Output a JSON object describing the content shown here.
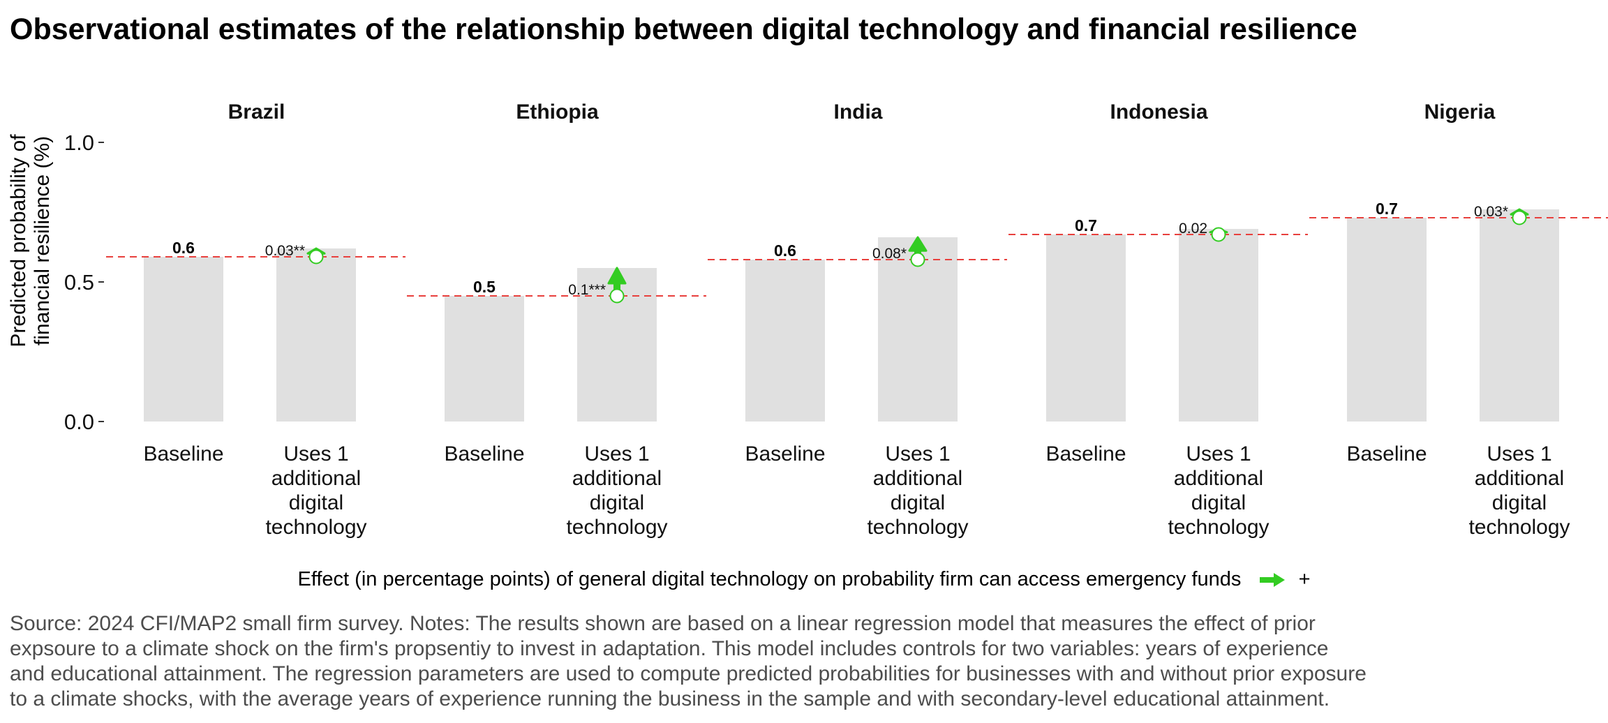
{
  "chart_data": {
    "type": "bar",
    "title": "Observational estimates of the relationship between digital technology and financial resilience",
    "ylabel": [
      "Predicted probability of",
      "financial resilience (%)"
    ],
    "ylim": [
      0,
      1
    ],
    "yticks": [
      {
        "value": 0.0,
        "label": "0.0"
      },
      {
        "value": 0.5,
        "label": "0.5"
      },
      {
        "value": 1.0,
        "label": "1.0"
      }
    ],
    "categories": [
      {
        "key": "baseline",
        "label_lines": [
          "Baseline"
        ]
      },
      {
        "key": "treated",
        "label_lines": [
          "Uses 1",
          "additional",
          "digital",
          "technology"
        ]
      }
    ],
    "panels": [
      {
        "name": "Brazil",
        "baseline": 0.59,
        "treated": 0.62,
        "baseline_label": "0.6",
        "effect_label": "0.03**"
      },
      {
        "name": "Ethiopia",
        "baseline": 0.45,
        "treated": 0.55,
        "baseline_label": "0.5",
        "effect_label": "0.1***"
      },
      {
        "name": "India",
        "baseline": 0.58,
        "treated": 0.66,
        "baseline_label": "0.6",
        "effect_label": "0.08*"
      },
      {
        "name": "Indonesia",
        "baseline": 0.67,
        "treated": 0.69,
        "baseline_label": "0.7",
        "effect_label": "0.02"
      },
      {
        "name": "Nigeria",
        "baseline": 0.73,
        "treated": 0.76,
        "baseline_label": "0.7",
        "effect_label": "0.03*"
      }
    ],
    "legend": {
      "text": "Effect (in percentage points) of general digital technology on probability firm can access emergency funds",
      "sign": "+",
      "placement": "bottom"
    },
    "grid": false,
    "colors": {
      "bar": "#e0e0e0",
      "reference_line": "#e8403d",
      "effect": "#33cc22",
      "marker_fill": "#ffffff"
    }
  },
  "source_note": [
    "Source: 2024 CFI/MAP2 small firm survey. Notes: The results shown are based on a linear regression model that measures the effect of prior",
    "expsoure to a climate shock on the firm's propsentiy to invest in adaptation. This model includes controls for two variables: years of experience",
    "and educational attainment. The regression parameters are used to compute predicted probabilities for businesses with and without prior exposure",
    "to a climate shocks, with the average years of experience running the business in the sample and with secondary-level educational attainment."
  ]
}
